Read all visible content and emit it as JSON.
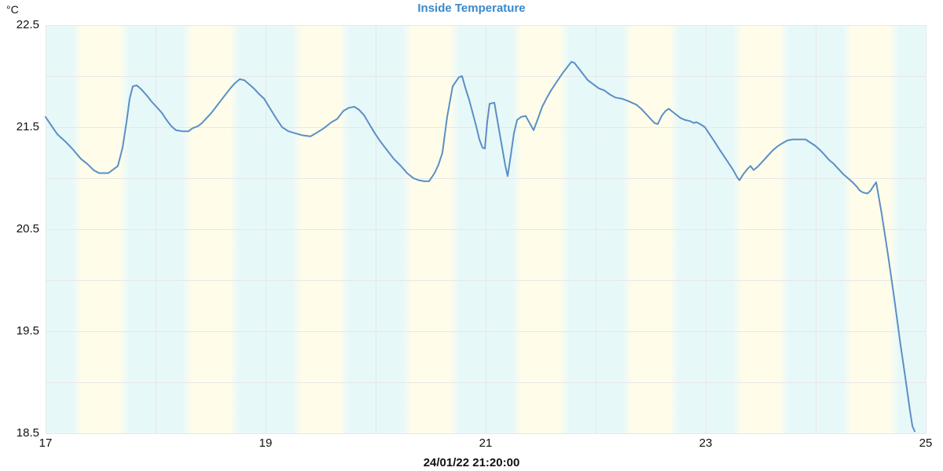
{
  "chart": {
    "title": "Inside Temperature",
    "y_unit": "°C",
    "timestamp_label": "24/01/22 21:20:00"
  },
  "colors": {
    "title": "#3a89c9",
    "text": "#111111",
    "line": "#5b8fc5",
    "grid": "#e7e7e7",
    "band_cyan": "#e7f8f9",
    "band_yellow": "#fffdea",
    "background": "#ffffff"
  },
  "chart_data": {
    "type": "line",
    "title": "Inside Temperature",
    "ylabel": "°C",
    "xlabel": "",
    "bottom_label": "24/01/22 21:20:00",
    "legend": false,
    "grid": true,
    "x_axis": {
      "min": 17,
      "max": 25,
      "ticks": [
        17,
        19,
        21,
        23,
        25
      ],
      "unit": "hour-of-day",
      "hour_band_pattern": "cyan-yellow-cyan"
    },
    "y_axis": {
      "min": 18.5,
      "max": 22.5,
      "ticks": [
        22.5,
        21.5,
        20.5,
        19.5,
        18.5
      ],
      "grid_step": 0.5
    },
    "series": [
      {
        "name": "Inside Temperature",
        "unit": "°C",
        "points": [
          [
            17.0,
            21.6
          ],
          [
            17.05,
            21.52
          ],
          [
            17.107,
            21.43
          ],
          [
            17.179,
            21.36
          ],
          [
            17.25,
            21.28
          ],
          [
            17.321,
            21.19
          ],
          [
            17.379,
            21.14
          ],
          [
            17.436,
            21.08
          ],
          [
            17.486,
            21.05
          ],
          [
            17.571,
            21.05
          ],
          [
            17.621,
            21.09
          ],
          [
            17.657,
            21.12
          ],
          [
            17.7,
            21.3
          ],
          [
            17.736,
            21.55
          ],
          [
            17.764,
            21.78
          ],
          [
            17.793,
            21.9
          ],
          [
            17.829,
            21.91
          ],
          [
            17.871,
            21.87
          ],
          [
            17.921,
            21.81
          ],
          [
            17.964,
            21.75
          ],
          [
            18.007,
            21.7
          ],
          [
            18.057,
            21.64
          ],
          [
            18.1,
            21.57
          ],
          [
            18.143,
            21.51
          ],
          [
            18.186,
            21.47
          ],
          [
            18.243,
            21.46
          ],
          [
            18.3,
            21.46
          ],
          [
            18.336,
            21.49
          ],
          [
            18.386,
            21.51
          ],
          [
            18.421,
            21.54
          ],
          [
            18.464,
            21.59
          ],
          [
            18.507,
            21.64
          ],
          [
            18.55,
            21.7
          ],
          [
            18.593,
            21.76
          ],
          [
            18.636,
            21.82
          ],
          [
            18.679,
            21.88
          ],
          [
            18.721,
            21.93
          ],
          [
            18.764,
            21.97
          ],
          [
            18.807,
            21.96
          ],
          [
            18.85,
            21.92
          ],
          [
            18.893,
            21.88
          ],
          [
            18.936,
            21.83
          ],
          [
            18.986,
            21.78
          ],
          [
            19.043,
            21.68
          ],
          [
            19.1,
            21.58
          ],
          [
            19.15,
            21.5
          ],
          [
            19.207,
            21.46
          ],
          [
            19.271,
            21.44
          ],
          [
            19.336,
            21.42
          ],
          [
            19.407,
            21.41
          ],
          [
            19.457,
            21.44
          ],
          [
            19.529,
            21.49
          ],
          [
            19.6,
            21.55
          ],
          [
            19.65,
            21.58
          ],
          [
            19.707,
            21.66
          ],
          [
            19.757,
            21.69
          ],
          [
            19.807,
            21.7
          ],
          [
            19.85,
            21.67
          ],
          [
            19.893,
            21.62
          ],
          [
            19.943,
            21.53
          ],
          [
            19.993,
            21.44
          ],
          [
            20.043,
            21.36
          ],
          [
            20.1,
            21.28
          ],
          [
            20.164,
            21.19
          ],
          [
            20.229,
            21.12
          ],
          [
            20.286,
            21.05
          ],
          [
            20.343,
            21.0
          ],
          [
            20.393,
            20.98
          ],
          [
            20.443,
            20.97
          ],
          [
            20.486,
            20.97
          ],
          [
            20.536,
            21.05
          ],
          [
            20.571,
            21.13
          ],
          [
            20.607,
            21.25
          ],
          [
            20.65,
            21.6
          ],
          [
            20.7,
            21.9
          ],
          [
            20.757,
            21.99
          ],
          [
            20.786,
            22.0
          ],
          [
            20.814,
            21.89
          ],
          [
            20.85,
            21.77
          ],
          [
            20.879,
            21.65
          ],
          [
            20.914,
            21.51
          ],
          [
            20.943,
            21.38
          ],
          [
            20.971,
            21.3
          ],
          [
            20.993,
            21.29
          ],
          [
            21.014,
            21.55
          ],
          [
            21.036,
            21.73
          ],
          [
            21.079,
            21.74
          ],
          [
            21.114,
            21.52
          ],
          [
            21.15,
            21.3
          ],
          [
            21.179,
            21.12
          ],
          [
            21.2,
            21.02
          ],
          [
            21.229,
            21.23
          ],
          [
            21.257,
            21.44
          ],
          [
            21.286,
            21.57
          ],
          [
            21.321,
            21.6
          ],
          [
            21.364,
            21.61
          ],
          [
            21.4,
            21.54
          ],
          [
            21.436,
            21.47
          ],
          [
            21.471,
            21.57
          ],
          [
            21.514,
            21.7
          ],
          [
            21.557,
            21.79
          ],
          [
            21.6,
            21.87
          ],
          [
            21.65,
            21.95
          ],
          [
            21.7,
            22.03
          ],
          [
            21.743,
            22.09
          ],
          [
            21.779,
            22.14
          ],
          [
            21.807,
            22.13
          ],
          [
            21.85,
            22.07
          ],
          [
            21.886,
            22.02
          ],
          [
            21.929,
            21.96
          ],
          [
            21.979,
            21.92
          ],
          [
            22.029,
            21.88
          ],
          [
            22.079,
            21.86
          ],
          [
            22.129,
            21.82
          ],
          [
            22.179,
            21.79
          ],
          [
            22.236,
            21.78
          ],
          [
            22.286,
            21.76
          ],
          [
            22.329,
            21.74
          ],
          [
            22.371,
            21.72
          ],
          [
            22.414,
            21.68
          ],
          [
            22.457,
            21.63
          ],
          [
            22.5,
            21.58
          ],
          [
            22.536,
            21.54
          ],
          [
            22.564,
            21.53
          ],
          [
            22.6,
            21.61
          ],
          [
            22.636,
            21.66
          ],
          [
            22.664,
            21.68
          ],
          [
            22.7,
            21.65
          ],
          [
            22.736,
            21.62
          ],
          [
            22.771,
            21.59
          ],
          [
            22.814,
            21.57
          ],
          [
            22.857,
            21.56
          ],
          [
            22.893,
            21.54
          ],
          [
            22.914,
            21.55
          ],
          [
            22.95,
            21.53
          ],
          [
            22.993,
            21.5
          ],
          [
            23.036,
            21.43
          ],
          [
            23.079,
            21.36
          ],
          [
            23.121,
            21.29
          ],
          [
            23.164,
            21.22
          ],
          [
            23.207,
            21.15
          ],
          [
            23.25,
            21.08
          ],
          [
            23.286,
            21.01
          ],
          [
            23.307,
            20.98
          ],
          [
            23.343,
            21.04
          ],
          [
            23.379,
            21.09
          ],
          [
            23.407,
            21.12
          ],
          [
            23.436,
            21.08
          ],
          [
            23.471,
            21.11
          ],
          [
            23.514,
            21.16
          ],
          [
            23.564,
            21.22
          ],
          [
            23.607,
            21.27
          ],
          [
            23.65,
            21.31
          ],
          [
            23.693,
            21.34
          ],
          [
            23.743,
            21.37
          ],
          [
            23.793,
            21.38
          ],
          [
            23.85,
            21.38
          ],
          [
            23.907,
            21.38
          ],
          [
            23.95,
            21.35
          ],
          [
            23.993,
            21.32
          ],
          [
            24.036,
            21.28
          ],
          [
            24.079,
            21.23
          ],
          [
            24.121,
            21.18
          ],
          [
            24.164,
            21.14
          ],
          [
            24.207,
            21.09
          ],
          [
            24.25,
            21.04
          ],
          [
            24.293,
            21.0
          ],
          [
            24.336,
            20.96
          ],
          [
            24.371,
            20.92
          ],
          [
            24.4,
            20.88
          ],
          [
            24.429,
            20.86
          ],
          [
            24.471,
            20.85
          ],
          [
            24.5,
            20.88
          ],
          [
            24.529,
            20.93
          ],
          [
            24.55,
            20.96
          ],
          [
            24.6,
            20.65
          ],
          [
            24.657,
            20.25
          ],
          [
            24.714,
            19.82
          ],
          [
            24.771,
            19.37
          ],
          [
            24.814,
            19.05
          ],
          [
            24.857,
            18.72
          ],
          [
            24.879,
            18.57
          ],
          [
            24.9,
            18.52
          ]
        ]
      }
    ]
  }
}
